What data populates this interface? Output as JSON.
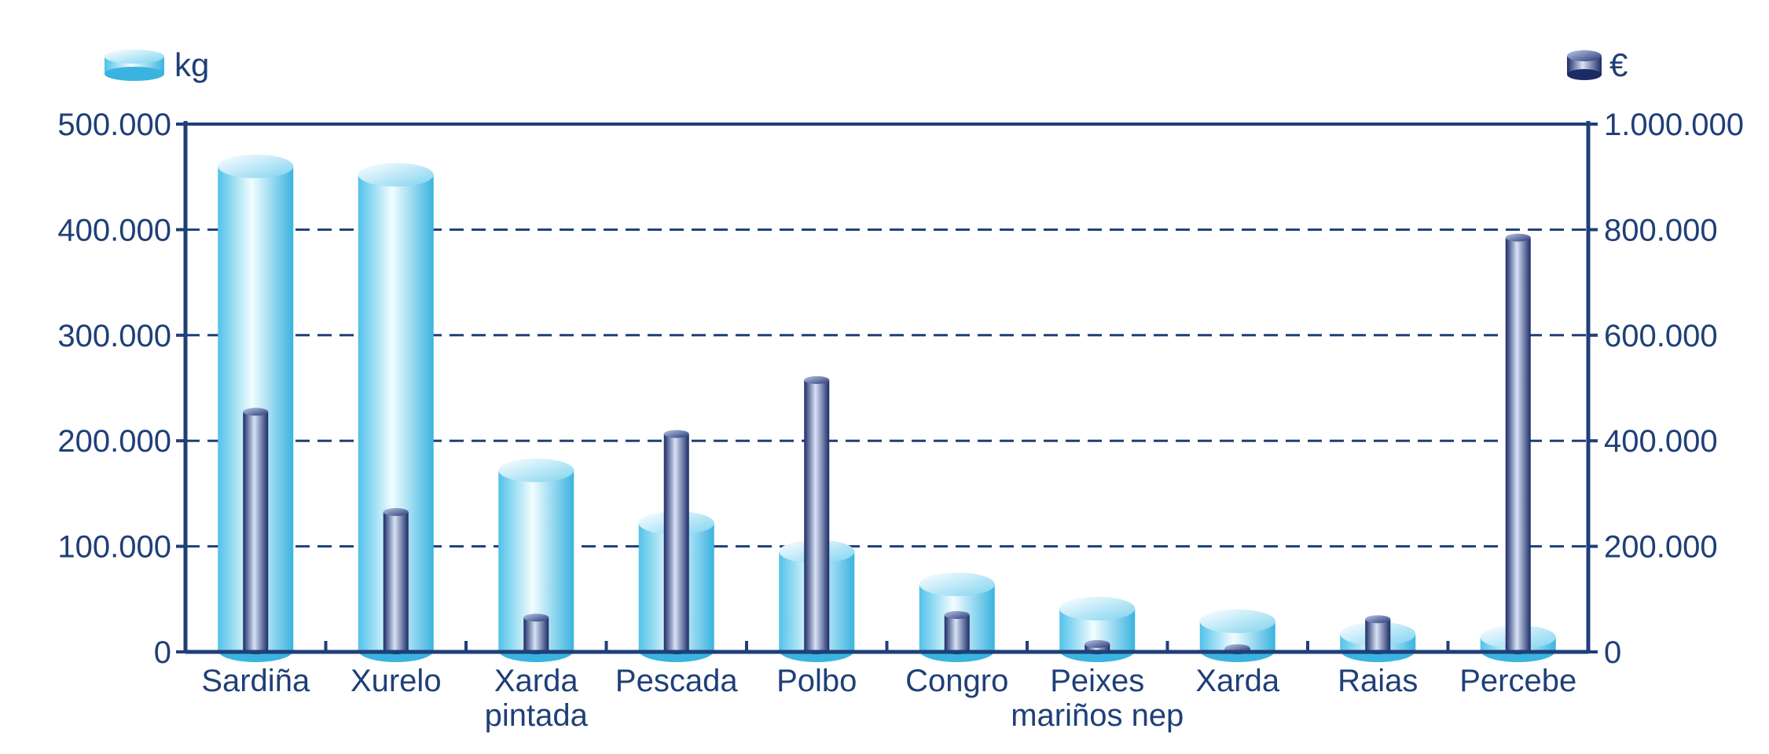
{
  "chart_data": {
    "type": "bar",
    "categories": [
      "Sardiña",
      "Xurelo",
      "Xarda\npintada",
      "Pescada",
      "Polbo",
      "Congro",
      "Peixes\nmariños nep",
      "Xarda",
      "Raias",
      "Percebe"
    ],
    "series": [
      {
        "name": "kg",
        "axis": "left",
        "values": [
          460000,
          452000,
          172000,
          122000,
          95000,
          64000,
          41000,
          29000,
          17000,
          14000
        ]
      },
      {
        "name": "€",
        "axis": "right",
        "values": [
          455000,
          265000,
          65000,
          413000,
          515000,
          70000,
          15000,
          7000,
          62000,
          785000
        ]
      }
    ],
    "left_axis": {
      "min": 0,
      "max": 500000,
      "ticks": [
        "0",
        "100.000",
        "200.000",
        "300.000",
        "400.000",
        "500.000"
      ]
    },
    "right_axis": {
      "min": 0,
      "max": 1000000,
      "ticks": [
        "0",
        "200.000",
        "400.000",
        "600.000",
        "800.000",
        "1.000.000"
      ]
    },
    "grid": true,
    "legend": {
      "left_label": "kg",
      "right_label": "€"
    },
    "colors": {
      "axis": "#1f3f78",
      "kg_light": "#eafbff",
      "kg_dark": "#39b4e0",
      "eur_light": "#c9d6f0",
      "eur_dark": "#1e2f6b"
    }
  }
}
